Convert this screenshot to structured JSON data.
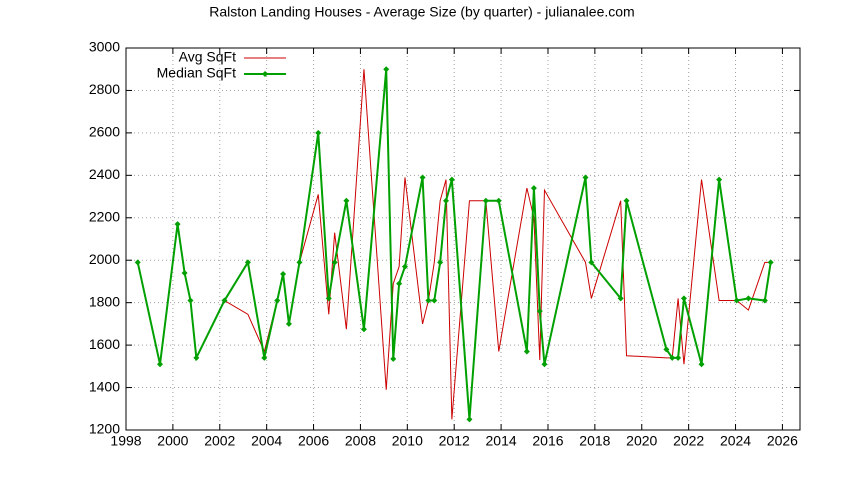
{
  "chart_data": {
    "type": "line",
    "title": "Ralston Landing Houses - Average Size (by quarter) - julianalee.com",
    "x": [
      1998.5,
      1999.45,
      2000.2,
      2000.5,
      2000.75,
      2001.0,
      2002.2,
      2003.2,
      2003.9,
      2004.45,
      2004.7,
      2004.95,
      2005.4,
      2006.2,
      2006.65,
      2006.9,
      2007.4,
      2008.15,
      2009.1,
      2009.4,
      2009.65,
      2009.9,
      2010.65,
      2010.9,
      2011.15,
      2011.4,
      2011.65,
      2011.9,
      2012.65,
      2013.35,
      2013.9,
      2015.1,
      2015.4,
      2015.65,
      2015.85,
      2017.6,
      2017.85,
      2019.1,
      2019.35,
      2021.05,
      2021.3,
      2021.55,
      2021.8,
      2022.55,
      2023.3,
      2024.05,
      2024.55,
      2025.25,
      2025.5
    ],
    "series": [
      {
        "name": "Avg SqFt",
        "color": "#cc0000",
        "values": [
          1990,
          1510,
          2170,
          1940,
          1810,
          1540,
          1810,
          1745,
          1570,
          1810,
          1935,
          1700,
          1990,
          2310,
          1745,
          2130,
          1675,
          2900,
          1390,
          1890,
          1970,
          2390,
          1700,
          1810,
          1990,
          2280,
          2380,
          1250,
          2280,
          2280,
          1570,
          2340,
          2200,
          1530,
          2330,
          1990,
          1820,
          2280,
          1550,
          1540,
          1540,
          1820,
          1510,
          2380,
          1810,
          1810,
          1765,
          1990,
          1990
        ]
      },
      {
        "name": "Median SqFt",
        "color": "#00a000",
        "values": [
          1990,
          1510,
          2170,
          1940,
          1810,
          1540,
          1810,
          1990,
          1540,
          1810,
          1935,
          1700,
          1990,
          2600,
          1820,
          1990,
          2280,
          1675,
          2900,
          1535,
          1890,
          1970,
          2390,
          1810,
          1810,
          1990,
          2280,
          2380,
          1250,
          2280,
          2280,
          1570,
          2340,
          1760,
          1510,
          2390,
          1990,
          1820,
          2280,
          1580,
          1540,
          1540,
          1820,
          1510,
          2380,
          1810,
          1820,
          1810,
          1990
        ]
      }
    ],
    "xlim": [
      1998,
      2026.75
    ],
    "xticks": [
      1998,
      2000,
      2002,
      2004,
      2006,
      2008,
      2010,
      2012,
      2014,
      2016,
      2018,
      2020,
      2022,
      2024,
      2026
    ],
    "ylim": [
      1200,
      3000
    ],
    "yticks": [
      1200,
      1400,
      1600,
      1800,
      2000,
      2200,
      2400,
      2600,
      2800,
      3000
    ],
    "grid": true,
    "legend": "top left"
  }
}
